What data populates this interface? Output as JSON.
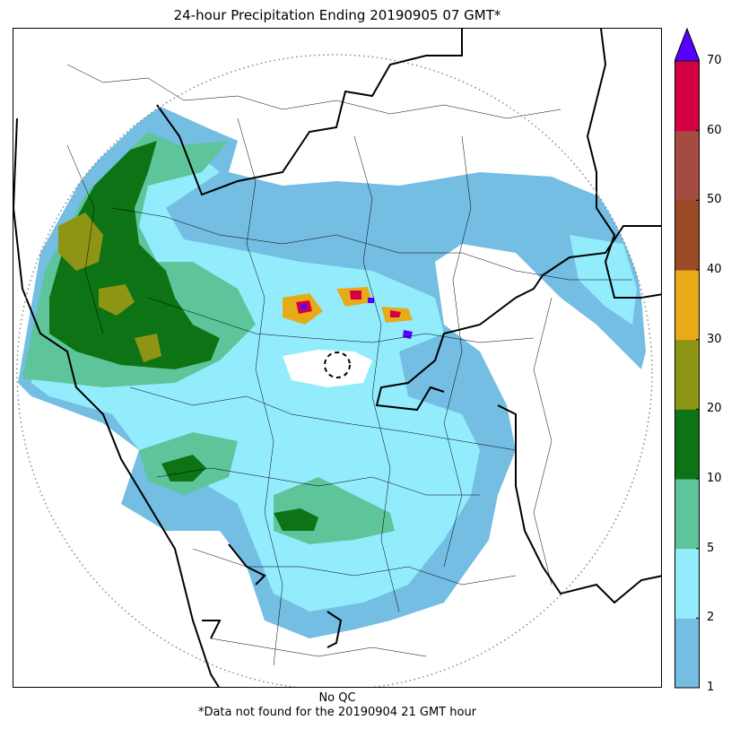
{
  "title": "24-hour Precipitation Ending 20190905 07 GMT*",
  "footer": {
    "qc_note": "No QC",
    "missing_note": "*Data not found for the 20190904 21 GMT hour"
  },
  "colorbar": {
    "extend": "max",
    "extend_color": "#5500ff",
    "ticks": [
      "1",
      "2",
      "5",
      "10",
      "20",
      "30",
      "40",
      "50",
      "60",
      "70"
    ],
    "bins": [
      {
        "from": 1,
        "to": 2,
        "color": "#74bde3"
      },
      {
        "from": 2,
        "to": 5,
        "color": "#93ecfc"
      },
      {
        "from": 5,
        "to": 10,
        "color": "#5ec59a"
      },
      {
        "from": 10,
        "to": 20,
        "color": "#0e7315"
      },
      {
        "from": 20,
        "to": 30,
        "color": "#8e9515"
      },
      {
        "from": 30,
        "to": 40,
        "color": "#e7ab18"
      },
      {
        "from": 40,
        "to": 50,
        "color": "#9a4a24"
      },
      {
        "from": 50,
        "to": 60,
        "color": "#a54b40"
      },
      {
        "from": 60,
        "to": 70,
        "color": "#d50043"
      }
    ]
  },
  "map": {
    "type": "radar precipitation accumulation",
    "range_ring": "dotted grey circle",
    "radar_site_marker": "dashed black circle",
    "borders": [
      "state boundaries (bold black)",
      "district boundaries (thin black)",
      "coastline (bold black)"
    ]
  }
}
